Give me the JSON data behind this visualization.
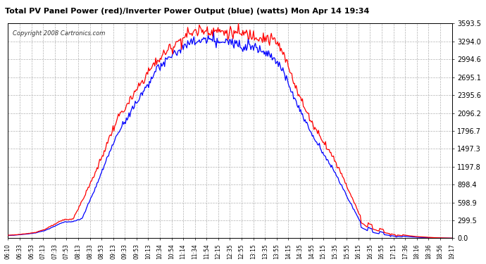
{
  "title": "Total PV Panel Power (red)/Inverter Power Output (blue) (watts) Mon Apr 14 19:34",
  "copyright": "Copyright 2008 Cartronics.com",
  "y_ticks": [
    0.0,
    299.5,
    598.9,
    898.4,
    1197.8,
    1497.3,
    1796.7,
    2096.2,
    2395.6,
    2695.1,
    2994.6,
    3294.0,
    3593.5
  ],
  "y_max": 3593.5,
  "x_labels": [
    "06:10",
    "06:33",
    "06:53",
    "07:13",
    "07:33",
    "07:53",
    "08:13",
    "08:33",
    "08:53",
    "09:13",
    "09:33",
    "09:53",
    "10:13",
    "10:34",
    "10:54",
    "11:14",
    "11:34",
    "11:54",
    "12:15",
    "12:35",
    "12:55",
    "13:15",
    "13:35",
    "13:55",
    "14:15",
    "14:35",
    "14:55",
    "15:15",
    "15:35",
    "15:55",
    "16:15",
    "16:35",
    "16:55",
    "17:15",
    "17:36",
    "18:16",
    "18:36",
    "18:56",
    "19:17"
  ],
  "background_color": "#ffffff",
  "plot_bg_color": "#ffffff",
  "grid_color": "#aaaaaa",
  "title_color": "#000000",
  "tick_color": "#000000",
  "red_color": "#ff0000",
  "blue_color": "#0000ff",
  "red_vals": [
    50,
    60,
    75,
    100,
    150,
    230,
    310,
    320,
    620,
    950,
    1300,
    1700,
    2050,
    2250,
    2500,
    2750,
    2950,
    3100,
    3250,
    3370,
    3450,
    3490,
    3480,
    3460,
    3440,
    3430,
    3410,
    3390,
    3350,
    3300,
    3000,
    2600,
    2200,
    1900,
    1650,
    1400,
    1100,
    750,
    400,
    250,
    180,
    120,
    80,
    50,
    30,
    20,
    10,
    5,
    2
  ],
  "blue_vals": [
    45,
    55,
    70,
    90,
    130,
    200,
    270,
    275,
    330,
    680,
    1050,
    1450,
    1800,
    2050,
    2300,
    2550,
    2800,
    2950,
    3100,
    3200,
    3280,
    3320,
    3310,
    3290,
    3270,
    3260,
    3240,
    3200,
    3100,
    3000,
    2700,
    2350,
    2000,
    1700,
    1450,
    1200,
    900,
    600,
    300,
    180,
    120,
    80,
    50,
    30,
    20,
    10,
    5,
    2,
    1
  ],
  "n_points": 500
}
